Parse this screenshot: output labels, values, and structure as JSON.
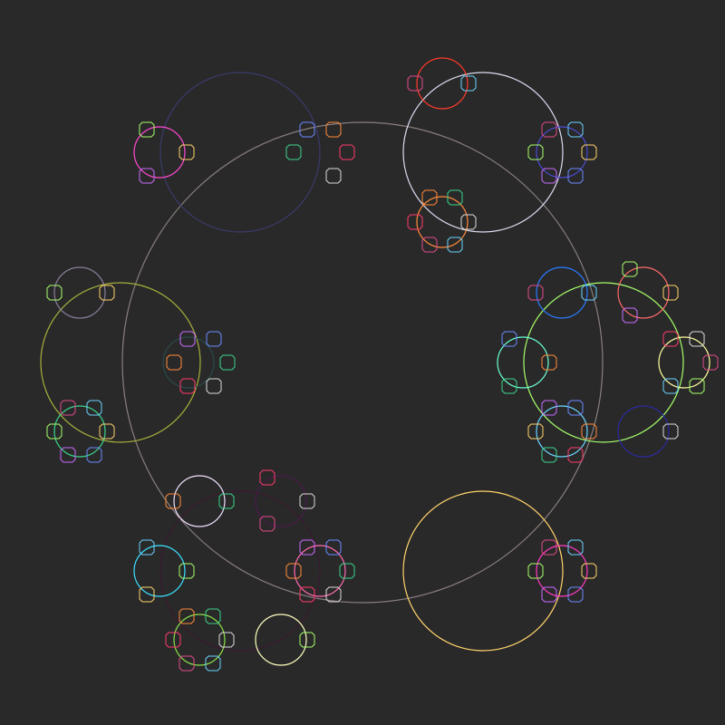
{
  "scene": {
    "background": "#292929",
    "big_circle_color": "#8a7e7e",
    "small_marker_colors": [
      "#e04a8a",
      "#6bd4ff",
      "#a6ff6a",
      "#ffd36b",
      "#c86bff",
      "#6b8aff",
      "#ff8a3a",
      "#3ad48a",
      "#ff3a6b",
      "#dadada"
    ]
  }
}
